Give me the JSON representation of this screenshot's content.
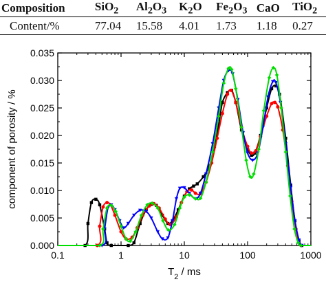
{
  "table": {
    "headers": [
      {
        "main": "Composition",
        "sub": ""
      },
      {
        "main": "SiO",
        "sub": "2",
        "tail": ""
      },
      {
        "main": "Al",
        "sub": "2",
        "mid": "O",
        "sub2": "3"
      },
      {
        "main": "K",
        "sub": "2",
        "mid": "O",
        "sub2": ""
      },
      {
        "main": "Fe",
        "sub": "2",
        "mid": "O",
        "sub2": "3"
      },
      {
        "main": "CaO",
        "sub": "",
        "mid": "",
        "sub2": ""
      },
      {
        "main": "TiO",
        "sub": "2",
        "mid": "",
        "sub2": ""
      }
    ],
    "row": [
      "Content/%",
      "77.04",
      "15.58",
      "4.01",
      "1.73",
      "1.18",
      "0.27"
    ]
  },
  "chart_data": {
    "type": "line",
    "xlabel": "T",
    "xlabel_sub": "2",
    "xlabel_unit": " / ms",
    "ylabel": "component of porosity / %",
    "xscale": "log",
    "xlim": [
      0.1,
      1000
    ],
    "ylim": [
      0,
      0.035
    ],
    "xticks": [
      "0.1",
      "1",
      "10",
      "100",
      "1000"
    ],
    "yticks": [
      "0.000",
      "0.005",
      "0.010",
      "0.015",
      "0.020",
      "0.025",
      "0.030",
      "0.035"
    ],
    "grid": false,
    "series": [
      {
        "color": "#000000",
        "marker": "square",
        "points": [
          [
            0.27,
            0
          ],
          [
            0.3,
            0.004
          ],
          [
            0.34,
            0.0078
          ],
          [
            0.4,
            0.0084
          ],
          [
            0.46,
            0.0074
          ],
          [
            0.55,
            0.003
          ],
          [
            0.6,
            0.0005
          ],
          [
            0.7,
            0
          ],
          [
            1.3,
            0
          ],
          [
            1.6,
            0.0005
          ],
          [
            2,
            0.004
          ],
          [
            2.5,
            0.0065
          ],
          [
            3,
            0.0075
          ],
          [
            3.6,
            0.0073
          ],
          [
            4.5,
            0.0055
          ],
          [
            5.5,
            0.004
          ],
          [
            6.5,
            0.0045
          ],
          [
            8,
            0.0065
          ],
          [
            10,
            0.009
          ],
          [
            12,
            0.0103
          ],
          [
            14,
            0.0108
          ],
          [
            16,
            0.0112
          ],
          [
            20,
            0.0125
          ],
          [
            25,
            0.0145
          ],
          [
            30,
            0.018
          ],
          [
            35,
            0.022
          ],
          [
            40,
            0.026
          ],
          [
            48,
            0.0278
          ],
          [
            56,
            0.0282
          ],
          [
            65,
            0.026
          ],
          [
            80,
            0.021
          ],
          [
            100,
            0.0175
          ],
          [
            115,
            0.0164
          ],
          [
            130,
            0.0168
          ],
          [
            160,
            0.02
          ],
          [
            200,
            0.025
          ],
          [
            240,
            0.0285
          ],
          [
            280,
            0.029
          ],
          [
            320,
            0.0275
          ],
          [
            400,
            0.0195
          ],
          [
            480,
            0.011
          ],
          [
            560,
            0.0045
          ],
          [
            650,
            0.0008
          ],
          [
            720,
            0
          ]
        ]
      },
      {
        "color": "#ff0000",
        "marker": "circle",
        "points": [
          [
            0.42,
            0
          ],
          [
            0.46,
            0.0035
          ],
          [
            0.52,
            0.007
          ],
          [
            0.6,
            0.0078
          ],
          [
            0.68,
            0.0074
          ],
          [
            0.8,
            0.0055
          ],
          [
            1,
            0.0025
          ],
          [
            1.2,
            0.0012
          ],
          [
            1.5,
            0.0015
          ],
          [
            1.8,
            0.0032
          ],
          [
            2.2,
            0.0055
          ],
          [
            2.8,
            0.0072
          ],
          [
            3.3,
            0.0076
          ],
          [
            4,
            0.0068
          ],
          [
            5,
            0.0048
          ],
          [
            6,
            0.0038
          ],
          [
            7.5,
            0.0052
          ],
          [
            9,
            0.0078
          ],
          [
            11,
            0.0098
          ],
          [
            13,
            0.0101
          ],
          [
            15,
            0.0095
          ],
          [
            18,
            0.0094
          ],
          [
            22,
            0.0115
          ],
          [
            27,
            0.015
          ],
          [
            33,
            0.0195
          ],
          [
            40,
            0.024
          ],
          [
            48,
            0.0275
          ],
          [
            55,
            0.0282
          ],
          [
            65,
            0.026
          ],
          [
            80,
            0.0215
          ],
          [
            100,
            0.018
          ],
          [
            115,
            0.0168
          ],
          [
            135,
            0.0172
          ],
          [
            160,
            0.0198
          ],
          [
            200,
            0.0235
          ],
          [
            240,
            0.0258
          ],
          [
            270,
            0.026
          ],
          [
            300,
            0.0252
          ],
          [
            360,
            0.021
          ],
          [
            430,
            0.0145
          ],
          [
            500,
            0.008
          ],
          [
            580,
            0.003
          ],
          [
            650,
            0.0005
          ],
          [
            700,
            0
          ]
        ]
      },
      {
        "color": "#0000ff",
        "marker": "triangle-down",
        "points": [
          [
            0.5,
            0
          ],
          [
            0.55,
            0.003
          ],
          [
            0.62,
            0.0068
          ],
          [
            0.7,
            0.0074
          ],
          [
            0.8,
            0.0065
          ],
          [
            0.95,
            0.0045
          ],
          [
            1.1,
            0.0032
          ],
          [
            1.3,
            0.004
          ],
          [
            1.6,
            0.0055
          ],
          [
            2,
            0.0064
          ],
          [
            2.5,
            0.0062
          ],
          [
            3,
            0.005
          ],
          [
            3.8,
            0.0025
          ],
          [
            4.5,
            0.0012
          ],
          [
            5.5,
            0.0014
          ],
          [
            6.5,
            0.0045
          ],
          [
            7.5,
            0.0085
          ],
          [
            8.5,
            0.0104
          ],
          [
            10,
            0.0105
          ],
          [
            12,
            0.0095
          ],
          [
            15,
            0.0085
          ],
          [
            18,
            0.0095
          ],
          [
            22,
            0.013
          ],
          [
            28,
            0.0185
          ],
          [
            35,
            0.025
          ],
          [
            42,
            0.03
          ],
          [
            50,
            0.0318
          ],
          [
            58,
            0.0312
          ],
          [
            70,
            0.0265
          ],
          [
            85,
            0.0205
          ],
          [
            100,
            0.0168
          ],
          [
            120,
            0.0155
          ],
          [
            145,
            0.0168
          ],
          [
            175,
            0.0215
          ],
          [
            210,
            0.027
          ],
          [
            250,
            0.0298
          ],
          [
            280,
            0.0296
          ],
          [
            330,
            0.026
          ],
          [
            400,
            0.0185
          ],
          [
            480,
            0.0105
          ],
          [
            560,
            0.0045
          ],
          [
            650,
            0.001
          ],
          [
            720,
            0
          ]
        ]
      },
      {
        "color": "#00dd00",
        "marker": "diamond",
        "points": [
          [
            0.46,
            0
          ],
          [
            0.52,
            0.003
          ],
          [
            0.6,
            0.0068
          ],
          [
            0.7,
            0.0073
          ],
          [
            0.82,
            0.0062
          ],
          [
            1,
            0.0035
          ],
          [
            1.2,
            0.0012
          ],
          [
            1.4,
            0.0008
          ],
          [
            1.7,
            0.0025
          ],
          [
            2.1,
            0.0055
          ],
          [
            2.6,
            0.0074
          ],
          [
            3.1,
            0.0077
          ],
          [
            3.8,
            0.0068
          ],
          [
            4.6,
            0.0045
          ],
          [
            5.6,
            0.0028
          ],
          [
            7,
            0.0038
          ],
          [
            8.5,
            0.0068
          ],
          [
            10,
            0.0088
          ],
          [
            12,
            0.0092
          ],
          [
            15,
            0.0085
          ],
          [
            18,
            0.0086
          ],
          [
            22,
            0.0115
          ],
          [
            28,
            0.017
          ],
          [
            35,
            0.0235
          ],
          [
            42,
            0.0295
          ],
          [
            50,
            0.0322
          ],
          [
            56,
            0.032
          ],
          [
            65,
            0.0285
          ],
          [
            80,
            0.0215
          ],
          [
            95,
            0.0155
          ],
          [
            110,
            0.0125
          ],
          [
            125,
            0.013
          ],
          [
            150,
            0.0175
          ],
          [
            180,
            0.0245
          ],
          [
            220,
            0.0305
          ],
          [
            255,
            0.0323
          ],
          [
            290,
            0.031
          ],
          [
            340,
            0.025
          ],
          [
            400,
            0.017
          ],
          [
            470,
            0.009
          ],
          [
            550,
            0.003
          ],
          [
            630,
            0.0005
          ],
          [
            700,
            0
          ]
        ]
      }
    ]
  }
}
